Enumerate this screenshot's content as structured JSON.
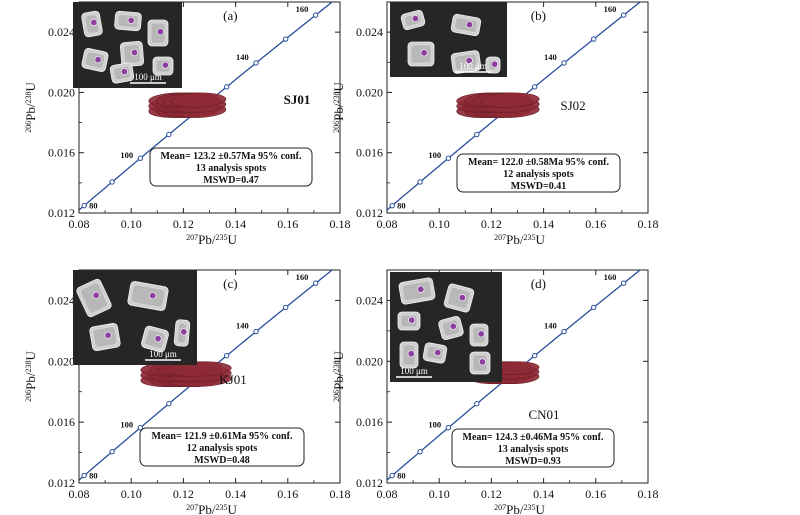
{
  "chart_data": [
    {
      "type": "concordia",
      "panel_letter": "(a)",
      "sample": "SJ01",
      "sample_bold": true,
      "xlabel": {
        "sup": "207",
        "main": "Pb/",
        "sup2": "235",
        "end": "U"
      },
      "ylabel": {
        "sup": "206",
        "main": "Pb/",
        "sup2": "238",
        "end": "U"
      },
      "xlim": [
        0.08,
        0.18
      ],
      "ylim": [
        0.012,
        0.026
      ],
      "xticks": [
        "0.08",
        "0.10",
        "0.12",
        "0.14",
        "0.16",
        "0.18"
      ],
      "yticks": [
        "0.012",
        "0.016",
        "0.020",
        "0.024"
      ],
      "concordia_ages": [
        "80",
        "100",
        "140",
        "160"
      ],
      "ellipse_cluster": {
        "x_range": [
          0.107,
          0.136
        ],
        "y_range": [
          0.0183,
          0.02
        ]
      },
      "result": {
        "mean": "Mean= 123.2 ±0.57Ma 95% conf.",
        "spots": "13 analysis spots",
        "mswd": "MSWD=0.47"
      },
      "scale_bar": "100 μm"
    },
    {
      "type": "concordia",
      "panel_letter": "(b)",
      "sample": "SJ02",
      "sample_bold": false,
      "xlabel": {
        "sup": "207",
        "main": "Pb/",
        "sup2": "235",
        "end": "U"
      },
      "ylabel": {
        "sup": "206",
        "main": "Pb/",
        "sup2": "238",
        "end": "U"
      },
      "xlim": [
        0.08,
        0.18
      ],
      "ylim": [
        0.012,
        0.026
      ],
      "xticks": [
        "0.08",
        "0.10",
        "0.12",
        "0.14",
        "0.16",
        "0.18"
      ],
      "yticks": [
        "0.012",
        "0.016",
        "0.020",
        "0.024"
      ],
      "concordia_ages": [
        "80",
        "100",
        "140",
        "160"
      ],
      "ellipse_cluster": {
        "x_range": [
          0.107,
          0.138
        ],
        "y_range": [
          0.0183,
          0.02
        ]
      },
      "result": {
        "mean": "Mean= 122.0 ±0.58Ma 95% conf.",
        "spots": "12 analysis spots",
        "mswd": "MSWD=0.41"
      },
      "scale_bar": "100 μm"
    },
    {
      "type": "concordia",
      "panel_letter": "(c)",
      "sample": "KJ01",
      "sample_bold": false,
      "xlabel": {
        "sup": "207",
        "main": "Pb/",
        "sup2": "235",
        "end": "U"
      },
      "ylabel": {
        "sup": "206",
        "main": "Pb/",
        "sup2": "238",
        "end": "U"
      },
      "xlim": [
        0.08,
        0.18
      ],
      "ylim": [
        0.012,
        0.026
      ],
      "xticks": [
        "0.08",
        "0.10",
        "0.12",
        "0.14",
        "0.16",
        "0.18"
      ],
      "yticks": [
        "0.012",
        "0.016",
        "0.020",
        "0.024"
      ],
      "concordia_ages": [
        "80",
        "100",
        "140",
        "160"
      ],
      "ellipse_cluster": {
        "x_range": [
          0.104,
          0.138
        ],
        "y_range": [
          0.0183,
          0.02
        ]
      },
      "result": {
        "mean": "Mean= 121.9 ±0.61Ma 95% conf.",
        "spots": "12 analysis spots",
        "mswd": "MSWD=0.48"
      },
      "scale_bar": "100 μm"
    },
    {
      "type": "concordia",
      "panel_letter": "(d)",
      "sample": "CN01",
      "sample_bold": false,
      "xlabel": {
        "sup": "207",
        "main": "Pb/",
        "sup2": "235",
        "end": "U"
      },
      "ylabel": {
        "sup": "206",
        "main": "Pb/",
        "sup2": "238",
        "end": "U"
      },
      "xlim": [
        0.08,
        0.18
      ],
      "ylim": [
        0.012,
        0.026
      ],
      "xticks": [
        "0.08",
        "0.10",
        "0.12",
        "0.14",
        "0.16",
        "0.18"
      ],
      "yticks": [
        "0.012",
        "0.016",
        "0.020",
        "0.024"
      ],
      "concordia_ages": [
        "80",
        "100",
        "140",
        "160"
      ],
      "ellipse_cluster": {
        "x_range": [
          0.112,
          0.138
        ],
        "y_range": [
          0.0185,
          0.02
        ]
      },
      "result": {
        "mean": "Mean= 124.3 ±0.46Ma 95% conf.",
        "spots": "13 analysis spots",
        "mswd": "MSWD=0.93"
      },
      "scale_bar": "100 μm"
    }
  ],
  "colors": {
    "concordia": "#2a4d9b",
    "ellipse_fill": "#8e2a36",
    "ellipse_edge": "#6b1d27",
    "cl_background": "#262626"
  }
}
